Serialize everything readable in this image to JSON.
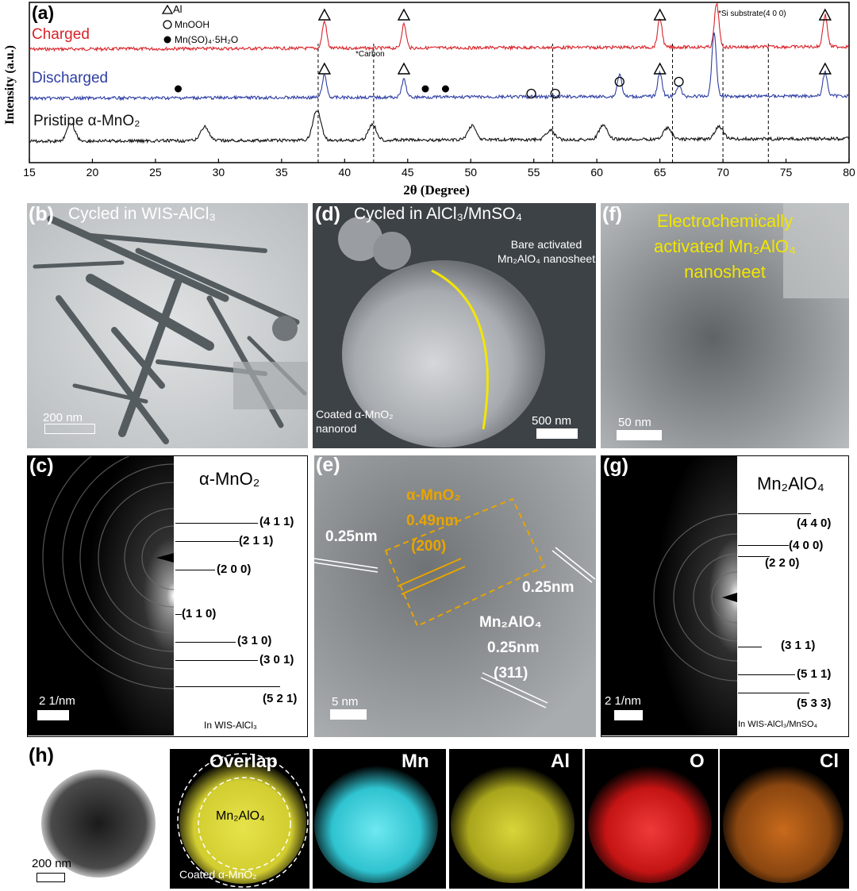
{
  "panel_a": {
    "letter": "(a)",
    "y_label": "Intensity (a.u.)",
    "x_label": "2θ (Degree)",
    "x_ticks": [
      "15",
      "20",
      "25",
      "30",
      "35",
      "40",
      "45",
      "50",
      "55",
      "60",
      "65",
      "70",
      "75",
      "80"
    ],
    "curves": {
      "charged": {
        "label": "Charged",
        "color": "#d9232a"
      },
      "discharged": {
        "label": "Discharged",
        "color": "#2e3ea3"
      },
      "pristine": {
        "label": "Pristine α-MnO₂",
        "color": "#111111"
      }
    },
    "legend": {
      "al": "Al",
      "mnooh": "MnOOH",
      "mnso4": "Mn(SO)₄·5H₂O"
    },
    "annotations": {
      "carbon": "*Carbon",
      "si": "*Si substrate(4 0 0)"
    },
    "chart_data": {
      "type": "line",
      "xlabel": "2θ (Degree)",
      "ylabel": "Intensity (a.u.)",
      "xlim": [
        15,
        80
      ],
      "series": [
        {
          "name": "Charged",
          "peaks": [
            38.4,
            44.7,
            65.0,
            69.5,
            78.1
          ]
        },
        {
          "name": "Discharged",
          "peaks": [
            38.4,
            44.7,
            61.8,
            65.0,
            66.5,
            69.3,
            78.1
          ]
        },
        {
          "name": "Pristine α-MnO2",
          "peaks": [
            18.3,
            28.9,
            37.8,
            42.2,
            50.1,
            56.3,
            60.5,
            65.6,
            69.7
          ]
        }
      ],
      "dashed_lines_x": [
        37.9,
        42.3,
        56.5,
        66.0,
        70.0,
        73.6
      ]
    }
  },
  "panel_b": {
    "letter": "(b)",
    "title": "Cycled in WIS-AlCl₃",
    "scale": "200 nm"
  },
  "panel_c": {
    "letter": "(c)",
    "title": "α-MnO₂",
    "scale": "2 1/nm",
    "footer": "In WIS-AlCl₃",
    "hkl": [
      "(4 1 1)",
      "(2 1 1)",
      "(2 0 0)",
      "(1 1 0)",
      "(3 1 0)",
      "(3 0 1)",
      "(5 2 1)"
    ]
  },
  "panel_d": {
    "letter": "(d)",
    "title": "Cycled in AlCl₃/MnSO₄",
    "label_bare": "Bare activated Mn₂AlO₄ nanosheet",
    "label_coated": "Coated α-MnO₂ nanorod",
    "scale": "500 nm"
  },
  "panel_e": {
    "letter": "(e)",
    "label_left": "0.25nm",
    "label_mno2_1": "α-MnO₂",
    "label_mno2_2": "0.49nm",
    "label_mno2_3": "(200)",
    "label_right": "0.25nm",
    "label_spinel_1": "Mn₂AlO₄",
    "label_spinel_2": "0.25nm",
    "label_spinel_3": "(311)",
    "scale": "5 nm"
  },
  "panel_f": {
    "letter": "(f)",
    "title_1": "Electrochemically",
    "title_2": "activated Mn₂AlO₄",
    "title_3": "nanosheet",
    "scale": "50 nm"
  },
  "panel_g": {
    "letter": "(g)",
    "title": "Mn₂AlO₄",
    "scale": "2 1/nm",
    "footer": "In WIS-AlCl₃/MnSO₄",
    "hkl": [
      "(4 4 0)",
      "(4 0 0)",
      "(2 2 0)",
      "(3 1 1)",
      "(5 1 1)",
      "(5 3 3)"
    ]
  },
  "panel_h": {
    "letter": "(h)",
    "scale": "200 nm",
    "overlap": "Overlap",
    "overlap_inner": "Mn₂AlO₄",
    "overlap_outer": "Coated α-MnO₂",
    "maps": [
      "Mn",
      "Al",
      "O",
      "Cl"
    ],
    "map_colors": [
      "#2fd3e0",
      "#c9c52a",
      "#e01a1a",
      "#e07a1a"
    ]
  }
}
